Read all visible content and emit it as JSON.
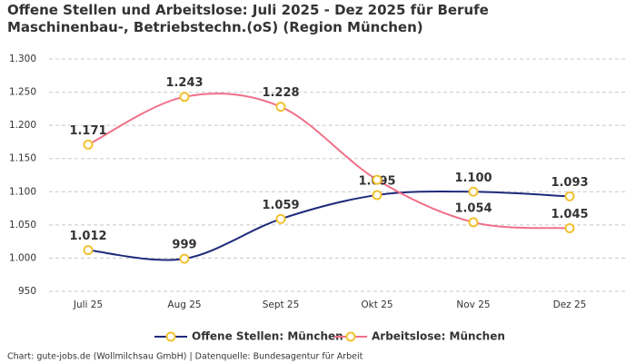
{
  "chart_data": {
    "type": "line",
    "title": "Offene Stellen und Arbeitslose: Juli 2025 - Dez 2025 für Berufe Maschinenbau-, Betriebstechn.(oS) (Region München)",
    "categories": [
      "Juli 25",
      "Aug 25",
      "Sept 25",
      "Okt 25",
      "Nov 25",
      "Dez 25"
    ],
    "series": [
      {
        "name": "Offene Stellen: München",
        "color": "#1f2a7a",
        "values": [
          1012,
          999,
          1059,
          1095,
          1100,
          1093
        ],
        "value_labels": [
          "1.012",
          "999",
          "1.059",
          "1.095",
          "1.100",
          "1.093"
        ]
      },
      {
        "name": "Arbeitslose: München",
        "color": "#f07088",
        "values": [
          1171,
          1243,
          1228,
          1118,
          1054,
          1045
        ],
        "value_labels": [
          "1.171",
          "1.243",
          "1.228",
          null,
          "1.054",
          "1.045"
        ]
      }
    ],
    "marker_color": "#f2c230",
    "ylim": [
      950,
      1300
    ],
    "yticks": [
      {
        "value": 950,
        "label": "950"
      },
      {
        "value": 1000,
        "label": "1.000"
      },
      {
        "value": 1050,
        "label": "1.050"
      },
      {
        "value": 1100,
        "label": "1.100"
      },
      {
        "value": 1150,
        "label": "1.150"
      },
      {
        "value": 1200,
        "label": "1.200"
      },
      {
        "value": 1250,
        "label": "1.250"
      },
      {
        "value": 1300,
        "label": "1.300"
      }
    ],
    "grid": true,
    "legend": "bottom",
    "footer": "Chart: gute-jobs.de (Wollmilchsau GmbH) | Datenquelle: Bundesagentur für Arbeit"
  }
}
